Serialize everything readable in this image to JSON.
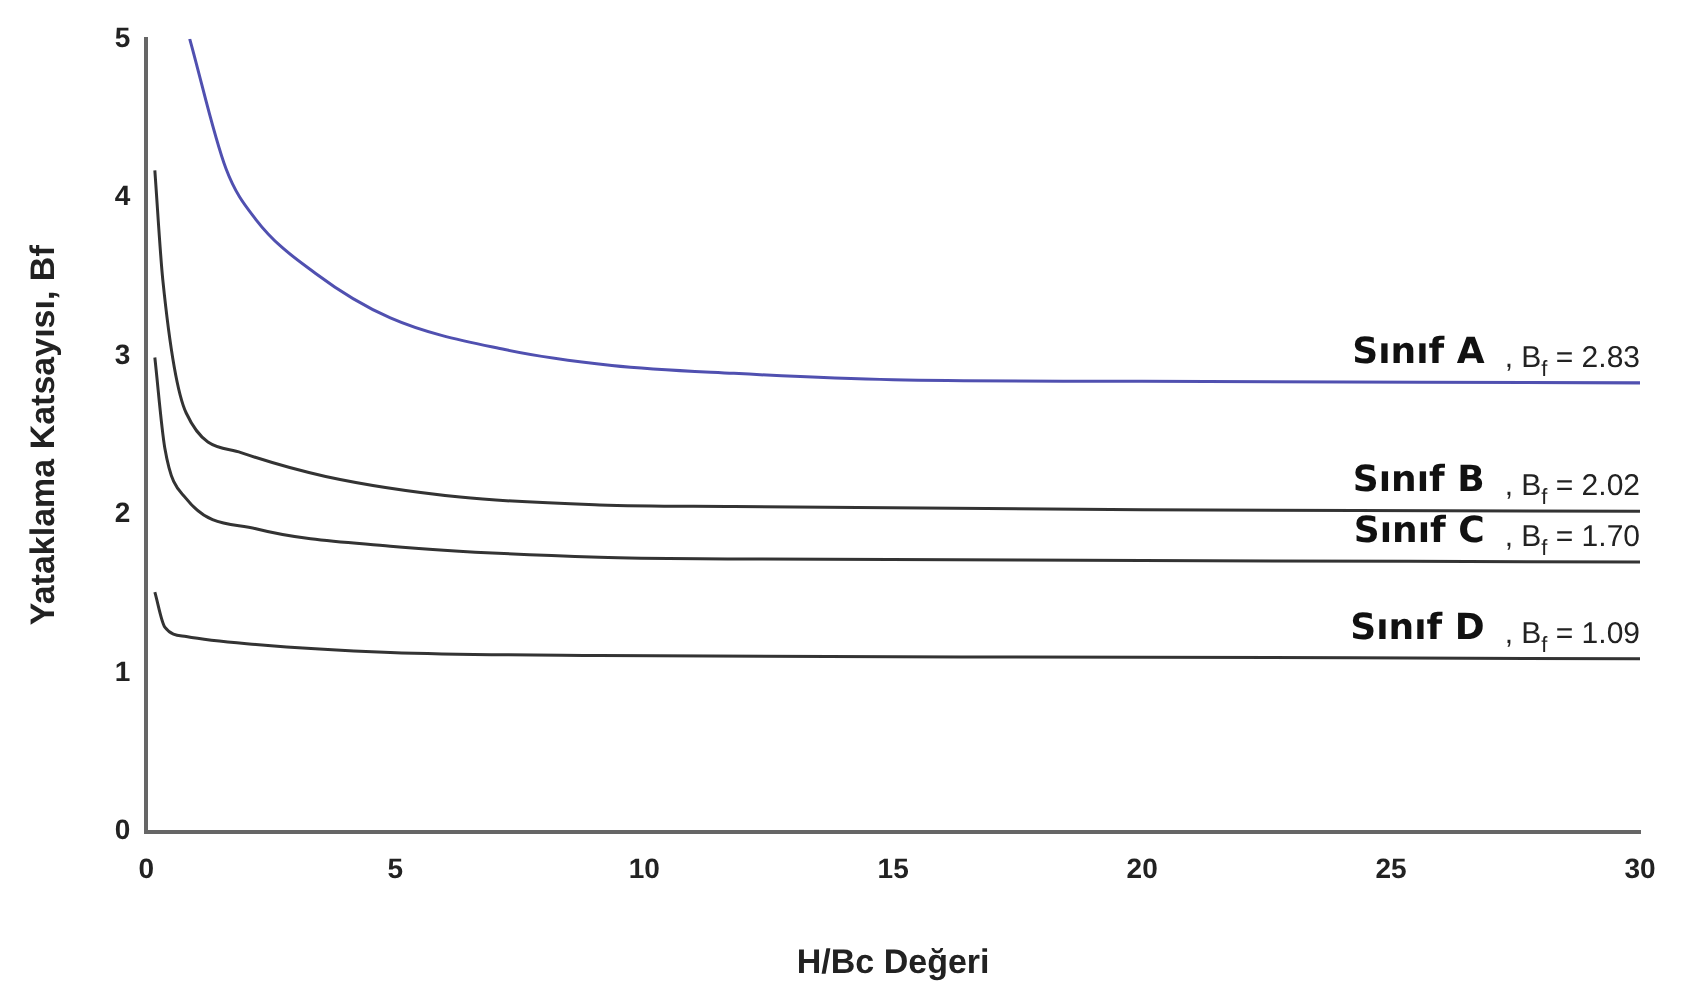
{
  "chart_data": {
    "type": "line",
    "xlabel": "H/Bc Değeri",
    "ylabel": "Yataklama Katsayısı, Bf",
    "xlim": [
      0,
      30
    ],
    "ylim": [
      0,
      5
    ],
    "xticks": [
      0,
      5,
      10,
      15,
      20,
      25,
      30
    ],
    "yticks": [
      0,
      1,
      2,
      3,
      4,
      5
    ],
    "grid": false,
    "legend": false,
    "marker": "none",
    "line_style": "solid",
    "series": [
      {
        "name": "Sınıf A",
        "color": "#5050b0",
        "x": [
          0.87,
          1.6,
          2.2,
          3.4,
          4.9,
          7.2,
          9.35,
          11.8,
          15,
          20,
          30
        ],
        "values": [
          5,
          4.18,
          3.86,
          3.52,
          3.24,
          3.04,
          2.94,
          2.89,
          2.85,
          2.84,
          2.83
        ]
      },
      {
        "name": "Sınıf B",
        "color": "#333333",
        "x": [
          0.17,
          0.33,
          0.8,
          1.9,
          3.6,
          6.3,
          9.1,
          11.8,
          20,
          30
        ],
        "values": [
          4.17,
          3.48,
          2.64,
          2.39,
          2.24,
          2.11,
          2.06,
          2.05,
          2.03,
          2.02
        ]
      },
      {
        "name": "Sınıf C",
        "color": "#333333",
        "x": [
          0.17,
          0.37,
          0.8,
          2.2,
          4.9,
          9.1,
          11.8,
          20,
          30
        ],
        "values": [
          2.99,
          2.42,
          2.1,
          1.91,
          1.8,
          1.73,
          1.72,
          1.71,
          1.7
        ]
      },
      {
        "name": "Sınıf D",
        "color": "#333333",
        "x": [
          0.17,
          0.37,
          0.8,
          2.2,
          4.9,
          9.1,
          20,
          30
        ],
        "values": [
          1.51,
          1.29,
          1.23,
          1.18,
          1.13,
          1.11,
          1.1,
          1.09
        ]
      }
    ],
    "annotations": [
      ", B$_{f}$ = 2.83",
      ", B$_{f}$ = 2.02",
      ", B$_{f}$ = 1.70",
      ", B$_{f}$ = 1.09"
    ]
  }
}
